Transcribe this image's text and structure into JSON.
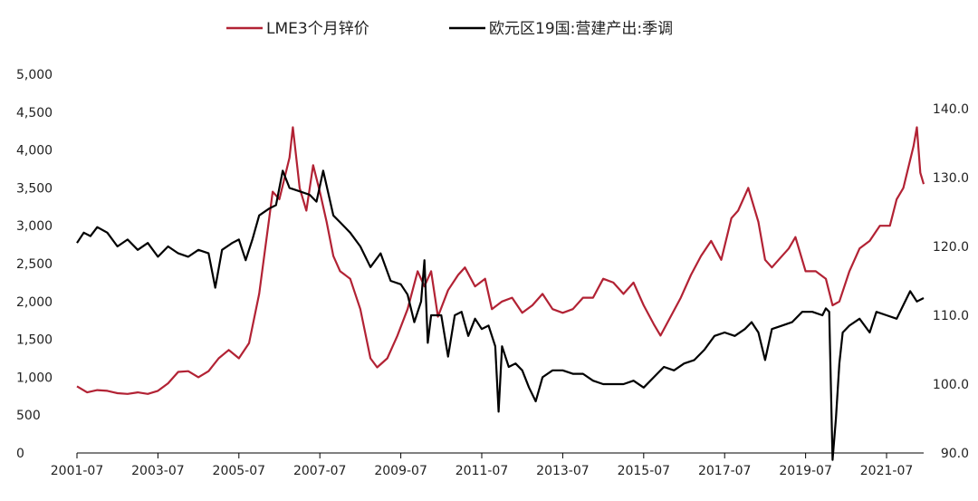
{
  "chart_data": {
    "type": "line",
    "title": "",
    "legend_position": "top",
    "grid": false,
    "x_range": [
      "2001-07",
      "2022-06"
    ],
    "x_ticks": [
      "2001-07",
      "2003-07",
      "2005-07",
      "2007-07",
      "2009-07",
      "2011-07",
      "2013-07",
      "2015-07",
      "2017-07",
      "2019-07",
      "2021-07"
    ],
    "y_left": {
      "range": [
        0,
        5000
      ],
      "ticks": [
        "0",
        "500",
        "1,000",
        "1,500",
        "2,000",
        "2,500",
        "3,000",
        "3,500",
        "4,000",
        "4,500",
        "5,000"
      ]
    },
    "y_right": {
      "range": [
        90,
        140
      ],
      "ticks": [
        "90.0",
        "100.0",
        "110.0",
        "120.0",
        "130.0",
        "140.0"
      ]
    },
    "series": [
      {
        "name": "LME3个月锌价",
        "axis": "left",
        "color": "#b22234",
        "points": [
          [
            "2001-07",
            880
          ],
          [
            "2001-10",
            800
          ],
          [
            "2002-01",
            830
          ],
          [
            "2002-04",
            820
          ],
          [
            "2002-07",
            790
          ],
          [
            "2002-10",
            780
          ],
          [
            "2003-01",
            800
          ],
          [
            "2003-04",
            780
          ],
          [
            "2003-07",
            820
          ],
          [
            "2003-10",
            920
          ],
          [
            "2004-01",
            1070
          ],
          [
            "2004-04",
            1080
          ],
          [
            "2004-07",
            1000
          ],
          [
            "2004-10",
            1080
          ],
          [
            "2005-01",
            1250
          ],
          [
            "2005-04",
            1360
          ],
          [
            "2005-07",
            1250
          ],
          [
            "2005-10",
            1450
          ],
          [
            "2006-01",
            2100
          ],
          [
            "2006-04",
            3100
          ],
          [
            "2006-05",
            3450
          ],
          [
            "2006-07",
            3350
          ],
          [
            "2006-10",
            3900
          ],
          [
            "2006-11",
            4300
          ],
          [
            "2007-01",
            3500
          ],
          [
            "2007-03",
            3200
          ],
          [
            "2007-05",
            3800
          ],
          [
            "2007-07",
            3450
          ],
          [
            "2007-09",
            3050
          ],
          [
            "2007-11",
            2600
          ],
          [
            "2008-01",
            2400
          ],
          [
            "2008-04",
            2300
          ],
          [
            "2008-07",
            1900
          ],
          [
            "2008-10",
            1250
          ],
          [
            "2008-12",
            1130
          ],
          [
            "2009-03",
            1250
          ],
          [
            "2009-06",
            1550
          ],
          [
            "2009-09",
            1900
          ],
          [
            "2009-12",
            2400
          ],
          [
            "2010-02",
            2200
          ],
          [
            "2010-04",
            2400
          ],
          [
            "2010-06",
            1800
          ],
          [
            "2010-09",
            2150
          ],
          [
            "2010-12",
            2350
          ],
          [
            "2011-02",
            2450
          ],
          [
            "2011-05",
            2200
          ],
          [
            "2011-08",
            2300
          ],
          [
            "2011-10",
            1900
          ],
          [
            "2012-01",
            2000
          ],
          [
            "2012-04",
            2050
          ],
          [
            "2012-07",
            1850
          ],
          [
            "2012-10",
            1950
          ],
          [
            "2013-01",
            2100
          ],
          [
            "2013-04",
            1900
          ],
          [
            "2013-07",
            1850
          ],
          [
            "2013-10",
            1900
          ],
          [
            "2014-01",
            2050
          ],
          [
            "2014-04",
            2050
          ],
          [
            "2014-07",
            2300
          ],
          [
            "2014-10",
            2250
          ],
          [
            "2015-01",
            2100
          ],
          [
            "2015-04",
            2250
          ],
          [
            "2015-07",
            1950
          ],
          [
            "2015-10",
            1700
          ],
          [
            "2015-12",
            1550
          ],
          [
            "2016-03",
            1800
          ],
          [
            "2016-06",
            2050
          ],
          [
            "2016-09",
            2350
          ],
          [
            "2016-12",
            2600
          ],
          [
            "2017-03",
            2800
          ],
          [
            "2017-06",
            2550
          ],
          [
            "2017-09",
            3100
          ],
          [
            "2017-11",
            3200
          ],
          [
            "2018-02",
            3500
          ],
          [
            "2018-05",
            3050
          ],
          [
            "2018-07",
            2550
          ],
          [
            "2018-09",
            2450
          ],
          [
            "2018-11",
            2550
          ],
          [
            "2019-02",
            2700
          ],
          [
            "2019-04",
            2850
          ],
          [
            "2019-07",
            2400
          ],
          [
            "2019-10",
            2400
          ],
          [
            "2020-01",
            2300
          ],
          [
            "2020-03",
            1950
          ],
          [
            "2020-05",
            2000
          ],
          [
            "2020-08",
            2400
          ],
          [
            "2020-11",
            2700
          ],
          [
            "2021-02",
            2800
          ],
          [
            "2021-05",
            3000
          ],
          [
            "2021-08",
            3000
          ],
          [
            "2021-10",
            3350
          ],
          [
            "2021-12",
            3500
          ],
          [
            "2022-03",
            4050
          ],
          [
            "2022-04",
            4300
          ],
          [
            "2022-05",
            3700
          ],
          [
            "2022-06",
            3550
          ]
        ]
      },
      {
        "name": "欧元区19国:营建产出:季调",
        "axis": "right",
        "color": "#000000",
        "points": [
          [
            "2001-07",
            120.5
          ],
          [
            "2001-09",
            122.0
          ],
          [
            "2001-11",
            121.5
          ],
          [
            "2002-01",
            122.8
          ],
          [
            "2002-04",
            122.0
          ],
          [
            "2002-07",
            120.0
          ],
          [
            "2002-10",
            121.0
          ],
          [
            "2003-01",
            119.5
          ],
          [
            "2003-04",
            120.5
          ],
          [
            "2003-07",
            118.5
          ],
          [
            "2003-10",
            120.0
          ],
          [
            "2004-01",
            119.0
          ],
          [
            "2004-04",
            118.5
          ],
          [
            "2004-07",
            119.5
          ],
          [
            "2004-10",
            119.0
          ],
          [
            "2004-12",
            114.0
          ],
          [
            "2005-02",
            119.5
          ],
          [
            "2005-05",
            120.5
          ],
          [
            "2005-07",
            121.0
          ],
          [
            "2005-09",
            118.0
          ],
          [
            "2005-11",
            121.0
          ],
          [
            "2006-01",
            124.5
          ],
          [
            "2006-04",
            125.5
          ],
          [
            "2006-06",
            126.0
          ],
          [
            "2006-08",
            131.0
          ],
          [
            "2006-10",
            128.5
          ],
          [
            "2007-01",
            128.0
          ],
          [
            "2007-04",
            127.5
          ],
          [
            "2007-06",
            126.5
          ],
          [
            "2007-08",
            131.0
          ],
          [
            "2007-11",
            124.5
          ],
          [
            "2008-01",
            123.5
          ],
          [
            "2008-04",
            122.0
          ],
          [
            "2008-07",
            120.0
          ],
          [
            "2008-10",
            117.0
          ],
          [
            "2009-01",
            119.0
          ],
          [
            "2009-04",
            115.0
          ],
          [
            "2009-07",
            114.5
          ],
          [
            "2009-09",
            113.0
          ],
          [
            "2009-11",
            109.0
          ],
          [
            "2010-01",
            112.0
          ],
          [
            "2010-02",
            118.0
          ],
          [
            "2010-03",
            106.0
          ],
          [
            "2010-04",
            110.0
          ],
          [
            "2010-07",
            110.0
          ],
          [
            "2010-09",
            104.0
          ],
          [
            "2010-11",
            110.0
          ],
          [
            "2011-01",
            110.5
          ],
          [
            "2011-03",
            107.0
          ],
          [
            "2011-05",
            109.5
          ],
          [
            "2011-07",
            108.0
          ],
          [
            "2011-09",
            108.5
          ],
          [
            "2011-11",
            105.5
          ],
          [
            "2011-12",
            96.0
          ],
          [
            "2012-01",
            105.5
          ],
          [
            "2012-03",
            102.5
          ],
          [
            "2012-05",
            103.0
          ],
          [
            "2012-07",
            102.0
          ],
          [
            "2012-09",
            99.5
          ],
          [
            "2012-11",
            97.5
          ],
          [
            "2013-01",
            101.0
          ],
          [
            "2013-04",
            102.0
          ],
          [
            "2013-07",
            102.0
          ],
          [
            "2013-10",
            101.5
          ],
          [
            "2014-01",
            101.5
          ],
          [
            "2014-04",
            100.5
          ],
          [
            "2014-07",
            100.0
          ],
          [
            "2014-10",
            100.0
          ],
          [
            "2015-01",
            100.0
          ],
          [
            "2015-04",
            100.5
          ],
          [
            "2015-07",
            99.5
          ],
          [
            "2015-10",
            101.0
          ],
          [
            "2016-01",
            102.5
          ],
          [
            "2016-04",
            102.0
          ],
          [
            "2016-07",
            103.0
          ],
          [
            "2016-10",
            103.5
          ],
          [
            "2017-01",
            105.0
          ],
          [
            "2017-04",
            107.0
          ],
          [
            "2017-07",
            107.5
          ],
          [
            "2017-10",
            107.0
          ],
          [
            "2018-01",
            108.0
          ],
          [
            "2018-03",
            109.0
          ],
          [
            "2018-05",
            107.5
          ],
          [
            "2018-07",
            103.5
          ],
          [
            "2018-09",
            108.0
          ],
          [
            "2018-12",
            108.5
          ],
          [
            "2019-03",
            109.0
          ],
          [
            "2019-06",
            110.5
          ],
          [
            "2019-09",
            110.5
          ],
          [
            "2019-12",
            110.0
          ],
          [
            "2020-01",
            111.0
          ],
          [
            "2020-02",
            110.5
          ],
          [
            "2020-03",
            89.0
          ],
          [
            "2020-04",
            95.0
          ],
          [
            "2020-05",
            103.0
          ],
          [
            "2020-06",
            107.5
          ],
          [
            "2020-08",
            108.5
          ],
          [
            "2020-11",
            109.5
          ],
          [
            "2021-02",
            107.5
          ],
          [
            "2021-04",
            110.5
          ],
          [
            "2021-07",
            110.0
          ],
          [
            "2021-10",
            109.5
          ],
          [
            "2021-12",
            111.5
          ],
          [
            "2022-02",
            113.5
          ],
          [
            "2022-04",
            112.0
          ],
          [
            "2022-06",
            112.5
          ]
        ]
      }
    ]
  }
}
